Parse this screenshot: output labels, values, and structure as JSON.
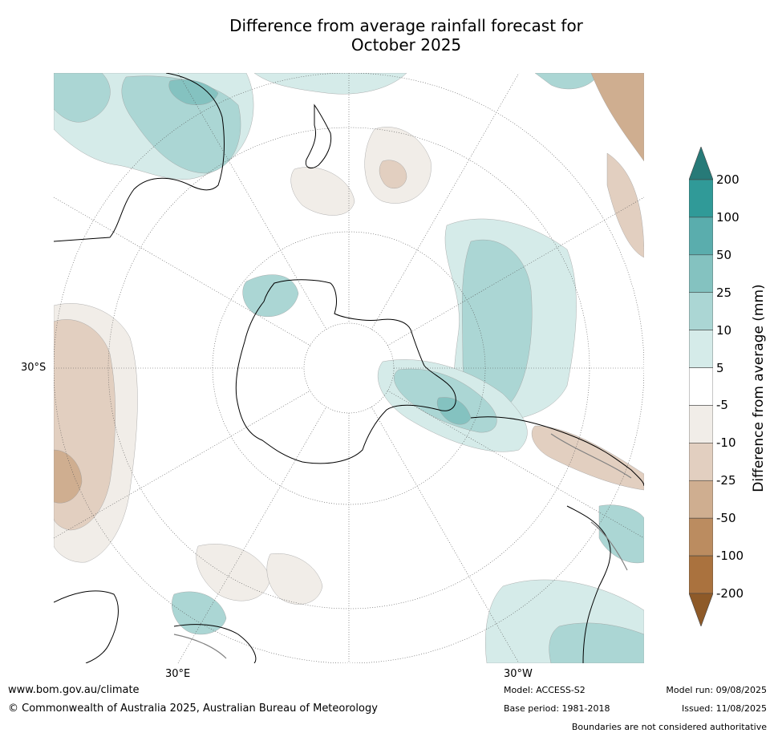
{
  "title_line1": "Difference from average rainfall forecast for",
  "title_line2": "October 2025",
  "map": {
    "lat_label": "30°S",
    "lon_label_east": "30°E",
    "lon_label_west": "30°W",
    "style": {
      "land_outline_color": "#000000",
      "border_color": "#808080",
      "graticule_color": "#555555"
    }
  },
  "colorbar": {
    "title": "Difference from average (mm)",
    "ticks": [
      "200",
      "100",
      "50",
      "25",
      "10",
      "5",
      "-5",
      "-10",
      "-25",
      "-50",
      "-100",
      "-200"
    ],
    "bins": [
      {
        "range": ">200",
        "color": "#277a78"
      },
      {
        "range": "100 to 200",
        "color": "#309a98"
      },
      {
        "range": "50 to 100",
        "color": "#5aadad"
      },
      {
        "range": "25 to 50",
        "color": "#84c2c0"
      },
      {
        "range": "10 to 25",
        "color": "#abd6d4"
      },
      {
        "range": "5 to 10",
        "color": "#d5ebe9"
      },
      {
        "range": "-5 to 5",
        "color": "#ffffff"
      },
      {
        "range": "-10 to -5",
        "color": "#f1ede8"
      },
      {
        "range": "-25 to -10",
        "color": "#e2cfc0"
      },
      {
        "range": "-50 to -25",
        "color": "#cfae90"
      },
      {
        "range": "-100 to -50",
        "color": "#bb8c60"
      },
      {
        "range": "-200 to -100",
        "color": "#aa723e"
      },
      {
        "range": "<-200",
        "color": "#8e5a28"
      }
    ]
  },
  "footer": {
    "website": "www.bom.gov.au/climate",
    "copyright": "© Commonwealth of Australia 2025, Australian Bureau of Meteorology",
    "model": "Model: ACCESS-S2",
    "base_period": "Base period: 1981-2018",
    "model_run": "Model run: 09/08/2025",
    "issued": "Issued: 11/08/2025",
    "disclaimer": "Boundaries are not considered authoritative"
  }
}
